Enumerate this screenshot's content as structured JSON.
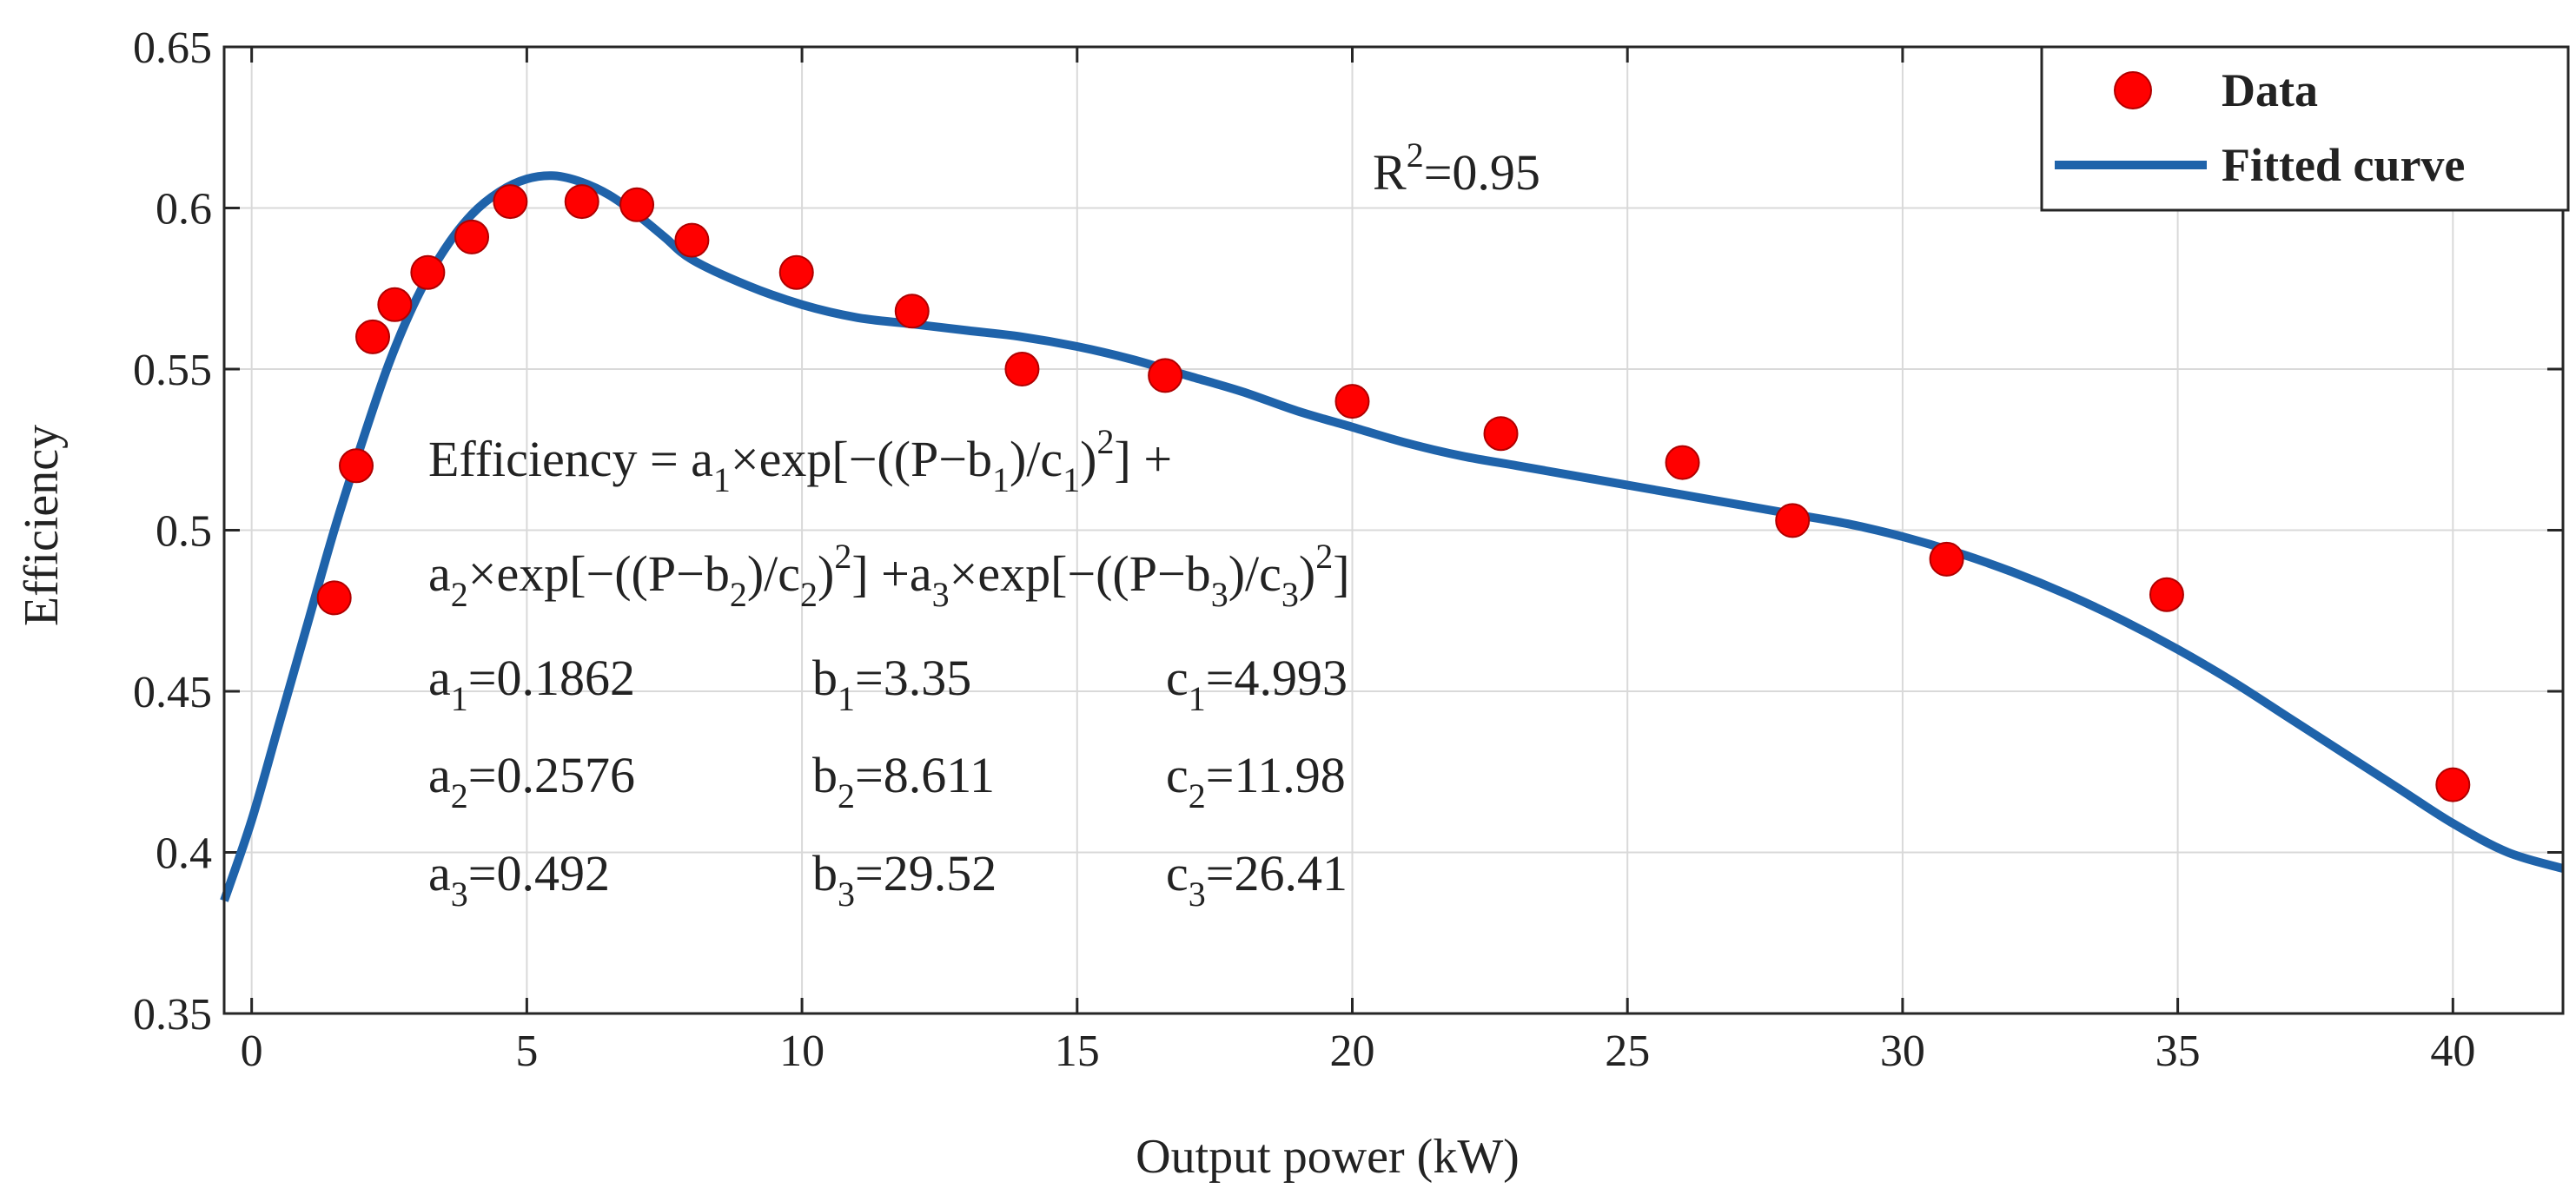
{
  "chart_data": {
    "type": "scatter",
    "title": "",
    "xlabel": "Output power (kW)",
    "ylabel": "Efficiency",
    "xlim": [
      -0.5,
      42
    ],
    "ylim": [
      0.35,
      0.65
    ],
    "xticks": [
      0,
      5,
      10,
      15,
      20,
      25,
      30,
      35,
      40
    ],
    "yticks": [
      0.35,
      0.4,
      0.45,
      0.5,
      0.55,
      0.6,
      0.65
    ],
    "xtick_labels": [
      "0",
      "5",
      "10",
      "15",
      "20",
      "25",
      "30",
      "35",
      "40"
    ],
    "ytick_labels": [
      "0.35",
      "0.4",
      "0.45",
      "0.5",
      "0.55",
      "0.6",
      "0.65"
    ],
    "grid": true,
    "legend": {
      "position": "top-right",
      "entries": [
        "Data",
        "Fitted curve"
      ]
    },
    "series": [
      {
        "name": "Data",
        "kind": "markers",
        "color": "#ff0000",
        "x": [
          1.5,
          1.9,
          2.2,
          2.6,
          3.2,
          4.0,
          4.7,
          6.0,
          7.0,
          8.0,
          9.9,
          12.0,
          14.0,
          16.6,
          20.0,
          22.7,
          26.0,
          28.0,
          30.8,
          34.8,
          40.0
        ],
        "y": [
          0.479,
          0.52,
          0.56,
          0.57,
          0.58,
          0.591,
          0.602,
          0.602,
          0.601,
          0.59,
          0.58,
          0.568,
          0.55,
          0.548,
          0.54,
          0.53,
          0.521,
          0.503,
          0.491,
          0.48,
          0.421
        ]
      },
      {
        "name": "Fitted curve",
        "kind": "line",
        "color": "#1f63aa",
        "x": [
          -0.5,
          0,
          0.5,
          1,
          1.5,
          2,
          2.5,
          3,
          3.5,
          4,
          4.5,
          5,
          5.5,
          6,
          6.5,
          7,
          7.5,
          8,
          9,
          10,
          11,
          12,
          13,
          14,
          15,
          16,
          17,
          18,
          19,
          20,
          21,
          22,
          23,
          24,
          25,
          26,
          27,
          28,
          29,
          30,
          31,
          32,
          33,
          34,
          35,
          36,
          37,
          38,
          39,
          40,
          41,
          42
        ],
        "y": [
          0.385,
          0.41,
          0.44,
          0.47,
          0.5,
          0.527,
          0.552,
          0.572,
          0.587,
          0.598,
          0.605,
          0.609,
          0.61,
          0.608,
          0.604,
          0.598,
          0.591,
          0.584,
          0.576,
          0.57,
          0.566,
          0.564,
          0.562,
          0.56,
          0.557,
          0.553,
          0.548,
          0.543,
          0.537,
          0.532,
          0.527,
          0.523,
          0.52,
          0.517,
          0.514,
          0.511,
          0.508,
          0.505,
          0.502,
          0.498,
          0.493,
          0.487,
          0.48,
          0.472,
          0.463,
          0.453,
          0.442,
          0.431,
          0.42,
          0.409,
          0.4,
          0.395
        ]
      }
    ],
    "annotations": {
      "r_squared": {
        "label": "R",
        "sup": "2",
        "value": "=0.95"
      },
      "equation": {
        "line1": {
          "lhs": "Efficiency = a",
          "s1": "1",
          "t1": "×exp[−((P−b",
          "s2": "1",
          "t2": ")/c",
          "s3": "1",
          "t3": ")",
          "sup": "2",
          "t4": "] +"
        },
        "line2": {
          "a": "a",
          "s1": "2",
          "t1": "×exp[−((P−b",
          "s2": "2",
          "t2": ")/c",
          "s3": "2",
          "t3": ")",
          "sup1": "2",
          "t4": "] +a",
          "s4": "3",
          "t5": "×exp[−((P−b",
          "s5": "3",
          "t6": ")/c",
          "s6": "3",
          "t7": ")",
          "sup2": "2",
          "t8": "]"
        }
      },
      "coefficients": [
        {
          "a": {
            "sub": "1",
            "value": "=0.1862"
          },
          "b": {
            "sub": "1",
            "value": "=3.35"
          },
          "c": {
            "sub": "1",
            "value": "=4.993"
          }
        },
        {
          "a": {
            "sub": "2",
            "value": "=0.2576"
          },
          "b": {
            "sub": "2",
            "value": "=8.611"
          },
          "c": {
            "sub": "2",
            "value": "=11.98"
          }
        },
        {
          "a": {
            "sub": "3",
            "value": "=0.492"
          },
          "b": {
            "sub": "3",
            "value": "=29.52"
          },
          "c": {
            "sub": "3",
            "value": "=26.41"
          }
        }
      ],
      "coef_letters": {
        "a": "a",
        "b": "b",
        "c": "c"
      }
    }
  }
}
